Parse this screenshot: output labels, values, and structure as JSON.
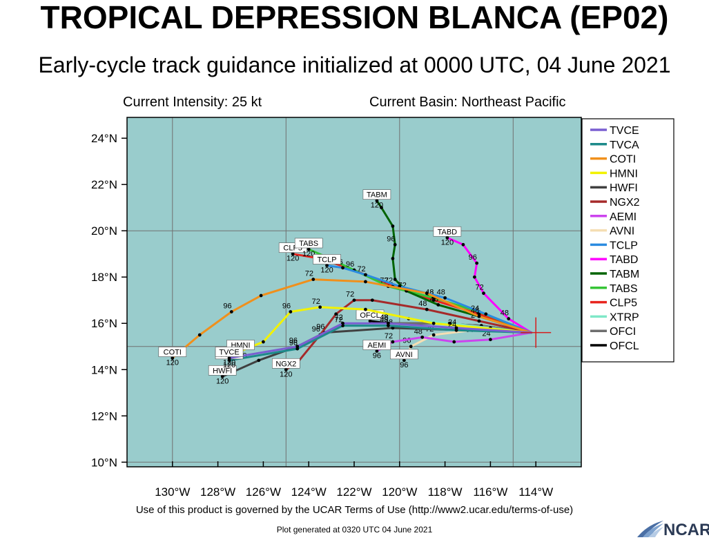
{
  "title": "TROPICAL DEPRESSION BLANCA (EP02)",
  "subtitle": "Early-cycle track guidance initialized at 0000 UTC, 04 June 2021",
  "current_intensity": "Current Intensity: 25 kt",
  "current_basin": "Current Basin: Northeast Pacific",
  "footer": "Use of this product is governed by the UCAR Terms of Use (http://www2.ucar.edu/terms-of-use)",
  "plot_generated": "Plot generated at 0320 UTC   04 June 2021",
  "logo": "NCAR",
  "colors": {
    "ocean": "#99cccc",
    "grid": "#707070"
  },
  "chart_data": {
    "type": "map",
    "lon_range": [
      -132,
      -112
    ],
    "lat_range": [
      9.8,
      24.9
    ],
    "lon_ticks": [
      {
        "value": -130,
        "label": "130°W"
      },
      {
        "value": -128,
        "label": "128°W"
      },
      {
        "value": -126,
        "label": "126°W"
      },
      {
        "value": -124,
        "label": "124°W"
      },
      {
        "value": -122,
        "label": "122°W"
      },
      {
        "value": -120,
        "label": "120°W"
      },
      {
        "value": -118,
        "label": "118°W"
      },
      {
        "value": -116,
        "label": "116°W"
      },
      {
        "value": -114,
        "label": "114°W"
      }
    ],
    "lat_ticks": [
      {
        "value": 10,
        "label": "10°N"
      },
      {
        "value": 12,
        "label": "12°N"
      },
      {
        "value": 14,
        "label": "14°N"
      },
      {
        "value": 16,
        "label": "16°N"
      },
      {
        "value": 18,
        "label": "18°N"
      },
      {
        "value": 20,
        "label": "20°N"
      },
      {
        "value": 22,
        "label": "22°N"
      },
      {
        "value": 24,
        "label": "24°N"
      }
    ],
    "grid_lons": [
      -130,
      -125,
      -120,
      -115
    ],
    "grid_lats": [
      10,
      15,
      20
    ],
    "grid": true,
    "legend_position": "right",
    "storm_position": {
      "lon": -114.0,
      "lat": 15.6
    },
    "models": [
      {
        "name": "TVCE",
        "color": "#7a5fd1",
        "points": [
          [
            -114.2,
            15.6
          ],
          [
            -117.5,
            15.8
          ],
          [
            -120.5,
            16.0
          ],
          [
            -122.5,
            16.0
          ],
          [
            -124.5,
            15.0
          ],
          [
            -127.5,
            14.5
          ]
        ],
        "hour_labels": [
          {
            "text": "24",
            "i": 1
          },
          {
            "text": "48",
            "i": 2
          },
          {
            "text": "72",
            "i": 3
          },
          {
            "text": "96",
            "i": 4
          }
        ],
        "end_label": "TVCE"
      },
      {
        "name": "TVCA",
        "color": "#1d8a8a",
        "points": [
          [
            -114.2,
            15.6
          ],
          [
            -117.5,
            15.7
          ],
          [
            -120.5,
            15.9
          ],
          [
            -122.5,
            15.9
          ],
          [
            -124.5,
            14.9
          ],
          [
            -127.5,
            14.4
          ]
        ],
        "hour_labels": [
          {
            "text": "24",
            "i": 1
          },
          {
            "text": "48",
            "i": 2
          },
          {
            "text": "72",
            "i": 3
          },
          {
            "text": "96",
            "i": 4
          }
        ],
        "end_label": "TVCA"
      },
      {
        "name": "COTI",
        "color": "#f0901c",
        "points": [
          [
            -114.2,
            15.6
          ],
          [
            -116.5,
            16.3
          ],
          [
            -118.8,
            17.3
          ],
          [
            -121.5,
            17.8
          ],
          [
            -123.8,
            17.9
          ],
          [
            -126.1,
            17.2
          ],
          [
            -127.4,
            16.5
          ],
          [
            -128.8,
            15.5
          ],
          [
            -130.0,
            14.5
          ]
        ],
        "hour_labels": [
          {
            "text": "48",
            "i": 1
          },
          {
            "text": "72",
            "i": 4
          },
          {
            "text": "96",
            "i": 6
          }
        ],
        "end_label": "COTI"
      },
      {
        "name": "HMNI",
        "color": "#f2f200",
        "points": [
          [
            -114.2,
            15.6
          ],
          [
            -118.5,
            16.0
          ],
          [
            -121.5,
            16.6
          ],
          [
            -123.5,
            16.7
          ],
          [
            -124.8,
            16.5
          ],
          [
            -126.0,
            15.2
          ],
          [
            -127.0,
            14.8
          ]
        ],
        "hour_labels": [
          {
            "text": "72",
            "i": 3
          },
          {
            "text": "96",
            "i": 4
          }
        ],
        "end_label": "HMNI"
      },
      {
        "name": "HWFI",
        "color": "#404040",
        "points": [
          [
            -114.2,
            15.6
          ],
          [
            -117.0,
            15.7
          ],
          [
            -120.3,
            15.8
          ],
          [
            -123.3,
            15.6
          ],
          [
            -124.5,
            15.0
          ],
          [
            -126.2,
            14.4
          ],
          [
            -127.8,
            13.7
          ]
        ],
        "hour_labels": [
          {
            "text": "48",
            "i": 2
          },
          {
            "text": "96",
            "i": 3
          }
        ],
        "end_label": "HWFI"
      },
      {
        "name": "NGX2",
        "color": "#a52a2a",
        "points": [
          [
            -114.2,
            15.6
          ],
          [
            -116.5,
            16.1
          ],
          [
            -118.8,
            16.6
          ],
          [
            -121.2,
            17.0
          ],
          [
            -122.0,
            17.0
          ],
          [
            -122.8,
            16.4
          ],
          [
            -123.5,
            15.5
          ],
          [
            -124.5,
            14.3
          ],
          [
            -125.0,
            14.0
          ]
        ],
        "hour_labels": [
          {
            "text": "24",
            "i": 1
          },
          {
            "text": "48",
            "i": 2
          },
          {
            "text": "72",
            "i": 4
          },
          {
            "text": "96",
            "i": 6
          }
        ],
        "end_label": "NGX2"
      },
      {
        "name": "AEMI",
        "color": "#cc44ee",
        "points": [
          [
            -114.2,
            15.6
          ],
          [
            -116.0,
            15.3
          ],
          [
            -117.6,
            15.2
          ],
          [
            -119.0,
            15.4
          ],
          [
            -120.3,
            15.2
          ],
          [
            -121.0,
            14.8
          ]
        ],
        "hour_labels": [
          {
            "text": "24",
            "i": 1
          },
          {
            "text": "48",
            "i": 3
          },
          {
            "text": "72",
            "i": 4
          },
          {
            "text": "96",
            "i": 5
          }
        ],
        "end_label": "AEMI"
      },
      {
        "name": "AVNI",
        "color": "#f5deb3",
        "points": [
          [
            -114.2,
            15.6
          ],
          [
            -116.8,
            15.7
          ],
          [
            -118.5,
            15.5
          ],
          [
            -119.5,
            15.0
          ],
          [
            -119.8,
            14.4
          ]
        ],
        "hour_labels": [
          {
            "text": "72",
            "i": 2
          },
          {
            "text": "96",
            "i": 3
          }
        ],
        "end_label": "AVNI"
      },
      {
        "name": "TCLP",
        "color": "#2b8be0",
        "points": [
          [
            -114.2,
            15.6
          ],
          [
            -116.2,
            16.4
          ],
          [
            -118.0,
            17.1
          ],
          [
            -120.0,
            17.6
          ],
          [
            -121.5,
            18.1
          ],
          [
            -122.5,
            18.4
          ],
          [
            -123.2,
            18.5
          ]
        ],
        "hour_labels": [
          {
            "text": "48",
            "i": 2
          },
          {
            "text": "72",
            "i": 4
          },
          {
            "text": "96",
            "i": 5
          }
        ],
        "end_label": "TCLP"
      },
      {
        "name": "TABD",
        "color": "#ff00ff",
        "points": [
          [
            -114.2,
            15.6
          ],
          [
            -115.2,
            16.2
          ],
          [
            -116.3,
            17.3
          ],
          [
            -116.7,
            18.0
          ],
          [
            -116.6,
            18.6
          ],
          [
            -117.2,
            19.4
          ],
          [
            -117.9,
            19.7
          ]
        ],
        "hour_labels": [
          {
            "text": "48",
            "i": 1
          },
          {
            "text": "72",
            "i": 2
          },
          {
            "text": "96",
            "i": 4
          }
        ],
        "end_label": "TABD"
      },
      {
        "name": "TABM",
        "color": "#006400",
        "points": [
          [
            -114.2,
            15.6
          ],
          [
            -116.5,
            16.3
          ],
          [
            -118.3,
            16.8
          ],
          [
            -119.7,
            17.4
          ],
          [
            -120.2,
            17.9
          ],
          [
            -120.3,
            18.8
          ],
          [
            -120.2,
            19.4
          ],
          [
            -120.3,
            20.2
          ],
          [
            -120.8,
            21.0
          ],
          [
            -121.0,
            21.3
          ]
        ],
        "hour_labels": [
          {
            "text": "48",
            "i": 2
          },
          {
            "text": "72",
            "i": 3
          },
          {
            "text": "96",
            "i": 6
          }
        ],
        "end_label": "TABM"
      },
      {
        "name": "TABS",
        "color": "#36c436",
        "points": [
          [
            -114.2,
            15.6
          ],
          [
            -116.5,
            16.5
          ],
          [
            -118.5,
            17.1
          ],
          [
            -120.5,
            17.6
          ],
          [
            -122.0,
            18.3
          ],
          [
            -123.3,
            18.9
          ],
          [
            -124.0,
            19.2
          ]
        ],
        "hour_labels": [
          {
            "text": "48",
            "i": 2
          },
          {
            "text": "72",
            "i": 3
          },
          {
            "text": "96",
            "i": 4
          }
        ],
        "end_label": "TABS"
      },
      {
        "name": "CLP5",
        "color": "#e8251f",
        "points": [
          [
            -114.2,
            15.6
          ],
          [
            -116.5,
            16.4
          ],
          [
            -118.5,
            17.0
          ],
          [
            -120.3,
            17.6
          ],
          [
            -122.0,
            18.3
          ],
          [
            -123.5,
            18.8
          ],
          [
            -124.7,
            19.0
          ]
        ],
        "hour_labels": [
          {
            "text": "24",
            "i": 1
          },
          {
            "text": "48",
            "i": 2
          },
          {
            "text": "72",
            "i": 3
          }
        ],
        "end_label": "CLP5"
      },
      {
        "name": "XTRP",
        "color": "#7fe8c8",
        "points": [
          [
            -114.2,
            15.6
          ],
          [
            -116.0,
            15.8
          ],
          [
            -117.8,
            16.0
          ],
          [
            -119.6,
            16.2
          ]
        ],
        "hour_labels": [],
        "end_label": ""
      },
      {
        "name": "OFCI",
        "color": "#6e6e6e",
        "points": [
          [
            -114.2,
            15.6
          ],
          [
            -116.4,
            15.9
          ],
          [
            -118.5,
            16.0
          ],
          [
            -120.5,
            16.0
          ]
        ],
        "hour_labels": [
          {
            "text": "48",
            "i": 3
          }
        ],
        "end_label": ""
      },
      {
        "name": "OFCL",
        "color": "#000000",
        "points": [
          [
            -114.2,
            15.6
          ],
          [
            -116.4,
            15.9
          ],
          [
            -118.5,
            16.0
          ],
          [
            -120.5,
            16.0
          ],
          [
            -121.3,
            16.1
          ]
        ],
        "hour_labels": [],
        "end_label": "OFCL"
      }
    ],
    "end_hour_labels": [
      {
        "model": "TVCE",
        "text": "120"
      },
      {
        "model": "TVCA",
        "text": "120"
      },
      {
        "model": "COTI",
        "text": "120"
      },
      {
        "model": "HMNI",
        "text": "120"
      },
      {
        "model": "HWFI",
        "text": "120"
      },
      {
        "model": "NGX2",
        "text": "120"
      },
      {
        "model": "AEMI",
        "text": "96"
      },
      {
        "model": "AVNI",
        "text": "96"
      },
      {
        "model": "TCLP",
        "text": "120"
      },
      {
        "model": "TABD",
        "text": "120"
      },
      {
        "model": "TABM",
        "text": "120"
      },
      {
        "model": "TABS",
        "text": "120"
      },
      {
        "model": "CLP5",
        "text": "120"
      }
    ]
  }
}
